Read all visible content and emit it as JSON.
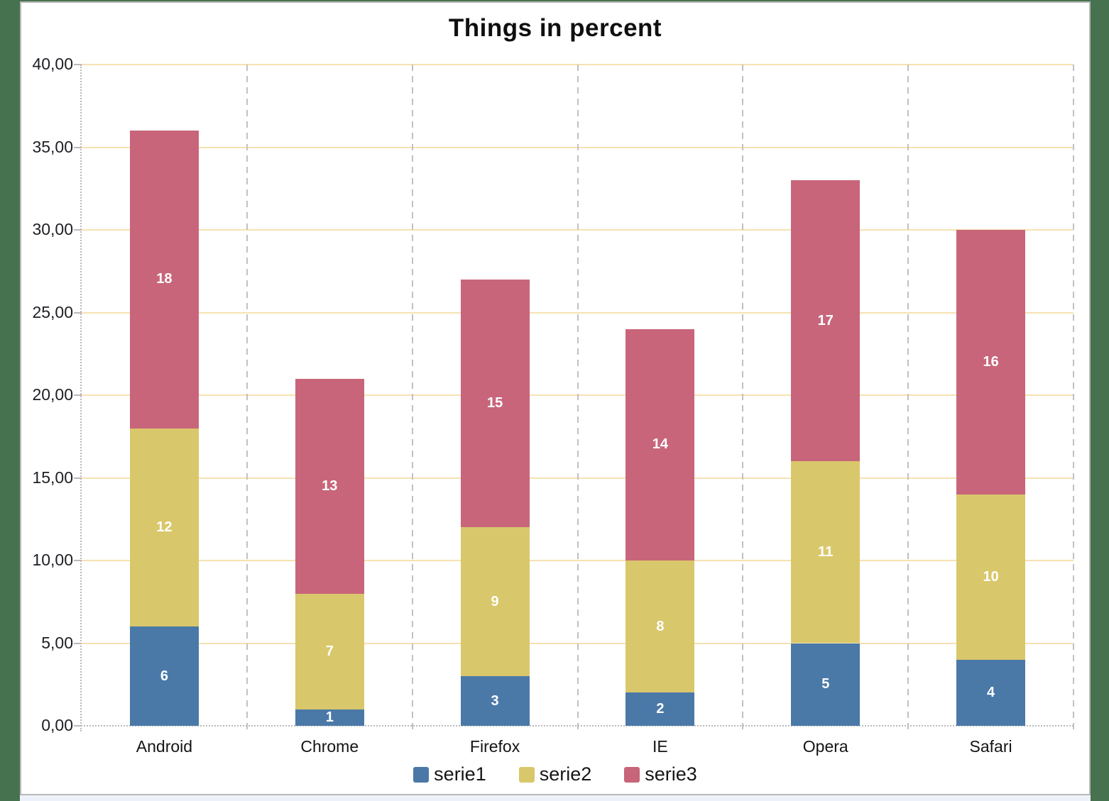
{
  "page": {
    "background_color": "#47724f",
    "canvas_color": "#ffffff",
    "canvas_border_color": "#b9b9b9",
    "bottom_strip_color": "#edf1f9"
  },
  "chart_data": {
    "type": "bar",
    "stacked": true,
    "title": "Things in percent",
    "categories": [
      "Android",
      "Chrome",
      "Firefox",
      "IE",
      "Opera",
      "Safari"
    ],
    "series": [
      {
        "name": "serie1",
        "color": "#4a79a8",
        "values": [
          6,
          1,
          3,
          2,
          5,
          4
        ]
      },
      {
        "name": "serie2",
        "color": "#d9c76b",
        "values": [
          12,
          7,
          9,
          8,
          11,
          10
        ]
      },
      {
        "name": "serie3",
        "color": "#c8657a",
        "values": [
          18,
          13,
          15,
          14,
          17,
          16
        ]
      }
    ],
    "totals": [
      36,
      21,
      27,
      24,
      33,
      30
    ],
    "xlabel": "",
    "ylabel": "",
    "ylim": [
      0,
      40
    ],
    "ytick_step": 5,
    "ytick_labels": [
      "0,00",
      "5,00",
      "10,00",
      "15,00",
      "20,00",
      "25,00",
      "30,00",
      "35,00",
      "40,00"
    ],
    "grid": true,
    "legend_position": "bottom",
    "colors": {
      "gridline": "#f6e2b2",
      "axis_line": "#b9b9b9",
      "category_separator": "#c1c1c1",
      "bar_label_text": "#ffffff",
      "axis_text": "#1e1e24"
    }
  }
}
